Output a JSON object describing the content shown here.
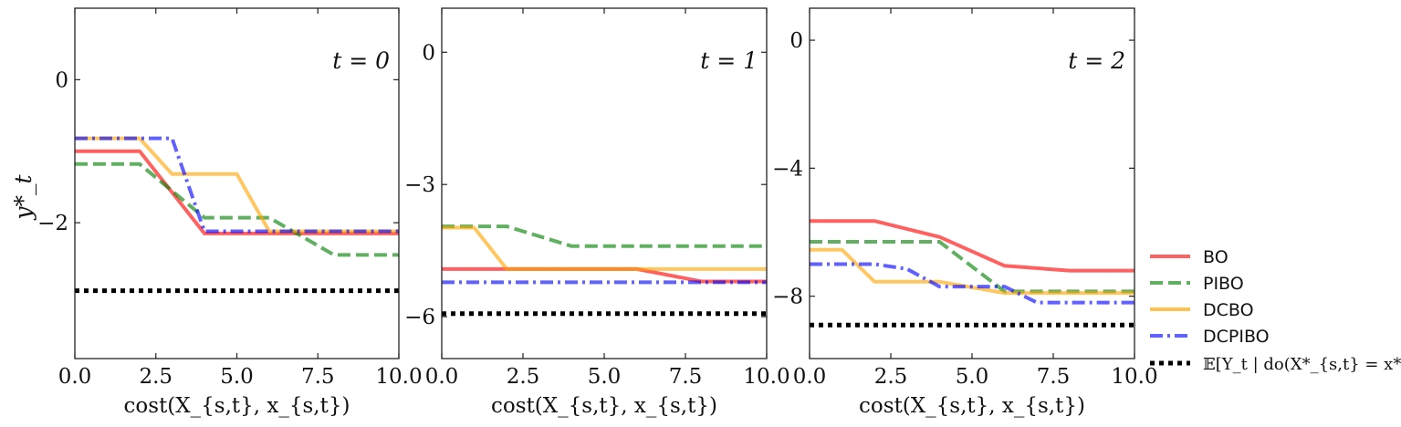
{
  "legend": {
    "bo": "BO",
    "pibo": "PIBO",
    "dcbo": "DCBO",
    "dcpibo": "DCPIBO",
    "optimum": "𝔼[Y_t | do(X*_{s,t} = x*_{s,t})]"
  },
  "colors": {
    "BO": "#ff0000",
    "PIBO": "#008000",
    "DCBO": "#ffa500",
    "DCPIBO": "#0000ff",
    "optimum": "#000000"
  },
  "chart_data": [
    {
      "type": "line",
      "annotation": "t = 0",
      "xlabel": "cost(X_{s,t}, x_{s,t})",
      "ylabel": "y*_t",
      "xlim": [
        0,
        10
      ],
      "ylim": [
        -3.9,
        1.0
      ],
      "xticks": [
        "0.0",
        "2.5",
        "5.0",
        "7.5",
        "10.0"
      ],
      "yticks": [
        {
          "v": 0,
          "label": "0"
        },
        {
          "v": -2,
          "label": "−2"
        }
      ],
      "series": [
        {
          "name": "BO",
          "style": "solid",
          "x": [
            0,
            2,
            4,
            10
          ],
          "y": [
            -1.0,
            -1.0,
            -2.15,
            -2.15
          ]
        },
        {
          "name": "PIBO",
          "style": "dashed",
          "x": [
            0,
            2,
            4,
            6,
            8,
            10
          ],
          "y": [
            -1.18,
            -1.18,
            -1.93,
            -1.93,
            -2.45,
            -2.45
          ]
        },
        {
          "name": "DCBO",
          "style": "solid",
          "x": [
            0,
            2,
            3,
            5,
            6,
            10
          ],
          "y": [
            -0.82,
            -0.82,
            -1.32,
            -1.32,
            -2.12,
            -2.12
          ]
        },
        {
          "name": "DCPIBO",
          "style": "dashdot",
          "x": [
            0,
            3,
            4,
            10
          ],
          "y": [
            -0.82,
            -0.82,
            -2.12,
            -2.12
          ]
        },
        {
          "name": "optimum",
          "style": "dotted",
          "x": [
            0,
            10
          ],
          "y": [
            -2.95,
            -2.95
          ]
        }
      ]
    },
    {
      "type": "line",
      "annotation": "t = 1",
      "xlabel": "cost(X_{s,t}, x_{s,t})",
      "ylabel": "",
      "xlim": [
        0,
        10
      ],
      "ylim": [
        -6.95,
        1.0
      ],
      "xticks": [
        "0.0",
        "2.5",
        "5.0",
        "7.5",
        "10.0"
      ],
      "yticks": [
        {
          "v": 0,
          "label": "0"
        },
        {
          "v": -3,
          "label": "−3"
        },
        {
          "v": -6,
          "label": "−6"
        }
      ],
      "series": [
        {
          "name": "BO",
          "style": "solid",
          "x": [
            0,
            6,
            8,
            10
          ],
          "y": [
            -4.92,
            -4.92,
            -5.2,
            -5.2
          ]
        },
        {
          "name": "PIBO",
          "style": "dashed",
          "x": [
            0,
            2,
            4,
            10
          ],
          "y": [
            -3.95,
            -3.95,
            -4.4,
            -4.4
          ]
        },
        {
          "name": "DCBO",
          "style": "solid",
          "x": [
            0,
            1,
            2,
            10
          ],
          "y": [
            -3.98,
            -3.98,
            -4.92,
            -4.92
          ]
        },
        {
          "name": "DCPIBO",
          "style": "dashdot",
          "x": [
            0,
            10
          ],
          "y": [
            -5.22,
            -5.22
          ]
        },
        {
          "name": "optimum",
          "style": "dotted",
          "x": [
            0,
            10
          ],
          "y": [
            -5.93,
            -5.93
          ]
        }
      ]
    },
    {
      "type": "line",
      "annotation": "t = 2",
      "xlabel": "cost(X_{s,t}, x_{s,t})",
      "ylabel": "",
      "xlim": [
        0,
        10
      ],
      "ylim": [
        -9.95,
        1.0
      ],
      "xticks": [
        "0.0",
        "2.5",
        "5.0",
        "7.5",
        "10.0"
      ],
      "yticks": [
        {
          "v": 0,
          "label": "0"
        },
        {
          "v": -4,
          "label": "−4"
        },
        {
          "v": -8,
          "label": "−8"
        }
      ],
      "series": [
        {
          "name": "BO",
          "style": "solid",
          "x": [
            0,
            2,
            4,
            6,
            8,
            10
          ],
          "y": [
            -5.65,
            -5.65,
            -6.15,
            -7.05,
            -7.2,
            -7.2
          ]
        },
        {
          "name": "PIBO",
          "style": "dashed",
          "x": [
            0,
            4,
            6,
            10
          ],
          "y": [
            -6.3,
            -6.3,
            -7.85,
            -7.85
          ]
        },
        {
          "name": "DCBO",
          "style": "solid",
          "x": [
            0,
            1,
            2,
            4,
            6,
            10
          ],
          "y": [
            -6.55,
            -6.55,
            -7.55,
            -7.55,
            -7.9,
            -7.9
          ]
        },
        {
          "name": "DCPIBO",
          "style": "dashdot",
          "x": [
            0,
            2,
            3,
            4,
            6,
            7,
            10
          ],
          "y": [
            -7.0,
            -7.0,
            -7.15,
            -7.7,
            -7.7,
            -8.2,
            -8.2
          ]
        },
        {
          "name": "optimum",
          "style": "dotted",
          "x": [
            0,
            10
          ],
          "y": [
            -8.9,
            -8.9
          ]
        }
      ]
    }
  ]
}
